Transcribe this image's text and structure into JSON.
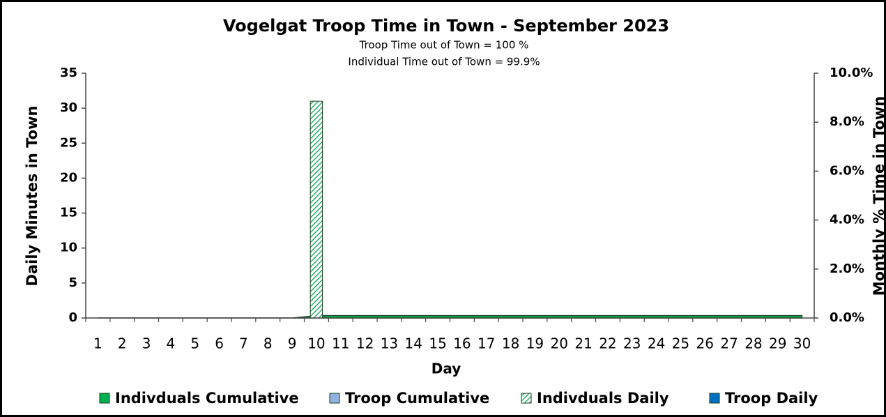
{
  "chart_data": {
    "type": "combo",
    "title": "Vogelgat Troop Time in Town - September 2023",
    "subtitles": [
      "Troop Time out of Town = 100 %",
      "Individual Time out of Town = 99.9%"
    ],
    "x_label": "Day",
    "y_label": "Daily Minutes in Town",
    "y2_label": "Monthly % Time in Town",
    "categories": [
      "1",
      "2",
      "3",
      "4",
      "5",
      "6",
      "7",
      "8",
      "9",
      "10",
      "11",
      "12",
      "13",
      "14",
      "15",
      "16",
      "17",
      "18",
      "19",
      "20",
      "21",
      "22",
      "23",
      "24",
      "25",
      "26",
      "27",
      "28",
      "29",
      "30"
    ],
    "ylim": [
      0,
      35
    ],
    "yticks": [
      0,
      5,
      10,
      15,
      20,
      25,
      30,
      35
    ],
    "y2lim": [
      0,
      10
    ],
    "y2ticks": [
      {
        "value": 0,
        "label": "0.0%"
      },
      {
        "value": 2,
        "label": "2.0%"
      },
      {
        "value": 4,
        "label": "4.0%"
      },
      {
        "value": 6,
        "label": "6.0%"
      },
      {
        "value": 8,
        "label": "8.0%"
      },
      {
        "value": 10,
        "label": "10.0%"
      }
    ],
    "legend": "bottom",
    "series": [
      {
        "name": "Indivduals Cumulative",
        "type": "area",
        "axis": "y2",
        "color": "#00b050",
        "values": [
          0,
          0,
          0,
          0,
          0,
          0,
          0,
          0,
          0,
          0.1,
          0.1,
          0.1,
          0.1,
          0.1,
          0.1,
          0.1,
          0.1,
          0.1,
          0.1,
          0.1,
          0.1,
          0.1,
          0.1,
          0.1,
          0.1,
          0.1,
          0.1,
          0.1,
          0.1,
          0.1
        ]
      },
      {
        "name": "Troop Cumulative",
        "type": "area",
        "axis": "y2",
        "color": "#8fb4e3",
        "values": [
          0,
          0,
          0,
          0,
          0,
          0,
          0,
          0,
          0,
          0,
          0,
          0,
          0,
          0,
          0,
          0,
          0,
          0,
          0,
          0,
          0,
          0,
          0,
          0,
          0,
          0,
          0,
          0,
          0,
          0
        ]
      },
      {
        "name": "Indivduals Daily",
        "type": "bar",
        "hatch": true,
        "color": "#00b050",
        "values": [
          0,
          0,
          0,
          0,
          0,
          0,
          0,
          0,
          0,
          31,
          0,
          0,
          0,
          0,
          0,
          0,
          0,
          0,
          0,
          0,
          0,
          0,
          0,
          0,
          0,
          0,
          0,
          0,
          0,
          0
        ]
      },
      {
        "name": "Troop Daily",
        "type": "bar",
        "color": "#0070c0",
        "values": [
          0,
          0,
          0,
          0,
          0,
          0,
          0,
          0,
          0,
          0,
          0,
          0,
          0,
          0,
          0,
          0,
          0,
          0,
          0,
          0,
          0,
          0,
          0,
          0,
          0,
          0,
          0,
          0,
          0,
          0
        ]
      }
    ]
  }
}
